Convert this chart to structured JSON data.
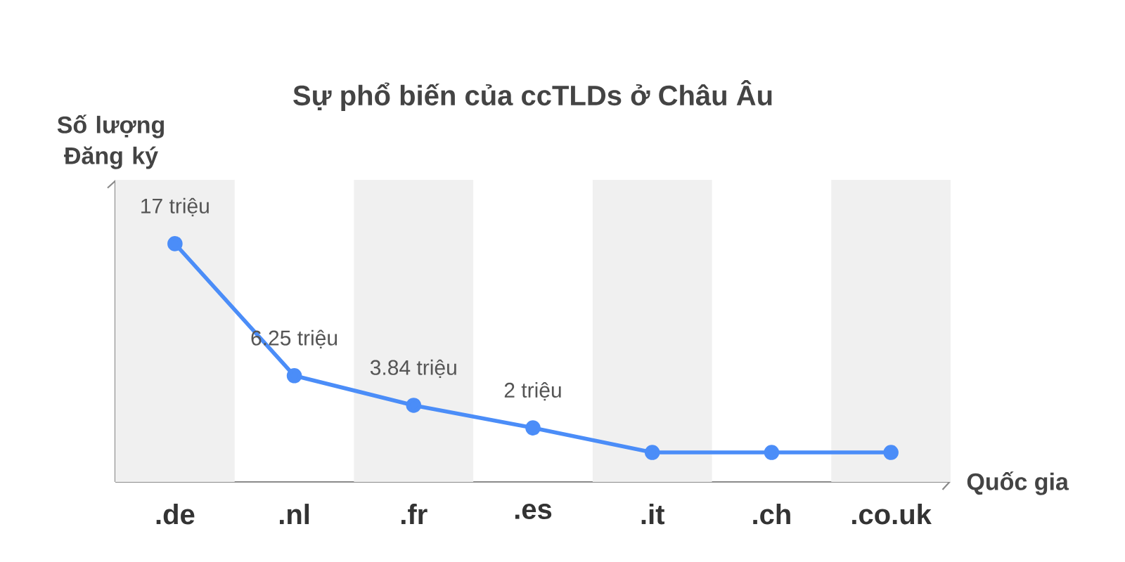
{
  "chart_data": {
    "type": "line",
    "title": "Sự phổ biến của ccTLDs ở Châu Âu",
    "ylabel": "Số lượng Đăng ký",
    "xlabel": "Quốc gia",
    "categories": [
      ".de",
      ".nl",
      ".fr",
      ".es",
      ".it",
      ".ch",
      ".co.uk"
    ],
    "series": [
      {
        "color": "#4b8df8",
        "values": [
          17,
          6.25,
          3.84,
          2,
          0,
          0,
          0
        ],
        "value_labels": [
          "17 triệu",
          "6.25 triệu",
          "3.84 triệu",
          "2 triệu",
          null,
          null,
          null
        ]
      }
    ],
    "ylim": [
      -2.4,
      22.2
    ],
    "tick_labels": "x",
    "marker": "circle",
    "line_style": "solid",
    "bands": [
      {
        "axis": "x",
        "from": ".de",
        "to": ".de",
        "color": "#f0f0f0"
      },
      {
        "axis": "x",
        "from": ".fr",
        "to": ".fr",
        "color": "#f0f0f0"
      },
      {
        "axis": "x",
        "from": ".it",
        "to": ".it",
        "color": "#f0f0f0"
      },
      {
        "axis": "x",
        "from": ".co.uk",
        "to": ".co.uk",
        "color": "#f0f0f0"
      }
    ]
  }
}
